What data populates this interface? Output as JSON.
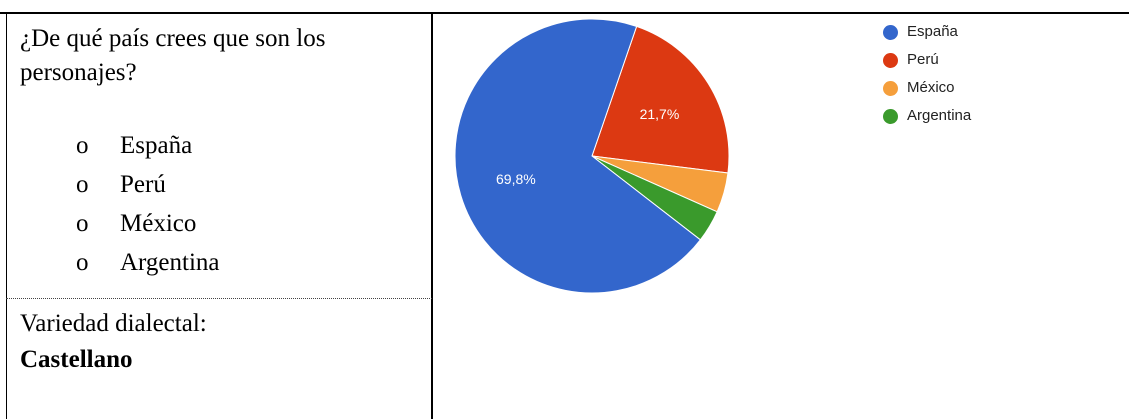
{
  "question": {
    "text": "¿De qué país crees que son los personajes?",
    "bullet": "o",
    "options": [
      "España",
      "Perú",
      "México",
      "Argentina"
    ]
  },
  "variety": {
    "label": "Variedad dialectal:",
    "value": "Castellano"
  },
  "chart_data": {
    "type": "pie",
    "categories": [
      "España",
      "Perú",
      "México",
      "Argentina"
    ],
    "values": [
      69.8,
      21.7,
      4.7,
      3.8
    ],
    "data_labels": [
      "69,8%",
      "21,7%",
      "",
      ""
    ],
    "colors": [
      "#3366cc",
      "#dc3912",
      "#f59f3c",
      "#3a9a2c"
    ],
    "legend_position": "top-right",
    "title": ""
  }
}
